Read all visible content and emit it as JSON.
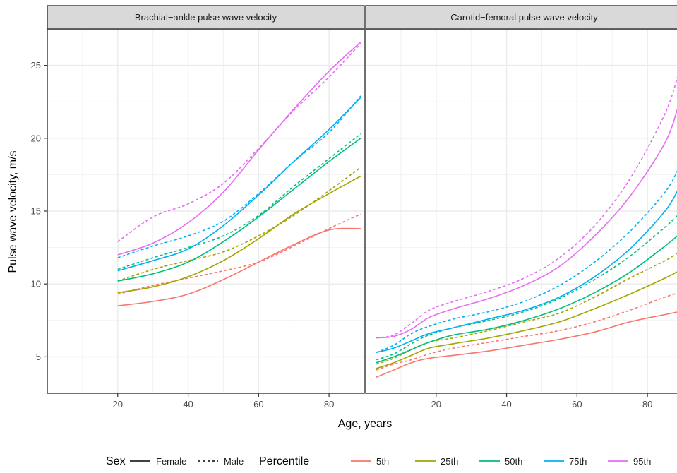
{
  "chart_data": {
    "type": "line",
    "xlabel": "Age, years",
    "ylabel": "Pulse wave velocity, m/s",
    "legend_position": "bottom",
    "grid": true,
    "colors": {
      "5th": "#F8766D",
      "25th": "#A3A500",
      "50th": "#00BF7D",
      "75th": "#00B0F6",
      "95th": "#E76BF3"
    },
    "legends": {
      "sex": {
        "title": "Sex",
        "items": [
          {
            "label": "Female",
            "linetype": "solid"
          },
          {
            "label": "Male",
            "linetype": "dashed"
          }
        ]
      },
      "percentile": {
        "title": "Percentile",
        "items": [
          "5th",
          "25th",
          "50th",
          "75th",
          "95th"
        ]
      }
    },
    "panels": [
      {
        "title": "Brachial−ankle pulse wave velocity",
        "xlim": [
          0,
          90
        ],
        "ylim": [
          2.5,
          27.5
        ],
        "x_ticks": [
          20,
          40,
          60,
          80
        ],
        "y_ticks": [
          5,
          10,
          15,
          20,
          25
        ],
        "series": [
          {
            "percentile": "5th",
            "sex": "Female",
            "x": [
              20,
              30,
              40,
              50,
              60,
              70,
              80,
              89
            ],
            "y": [
              8.5,
              8.8,
              9.3,
              10.3,
              11.5,
              12.7,
              13.7,
              13.8
            ]
          },
          {
            "percentile": "5th",
            "sex": "Male",
            "x": [
              20,
              30,
              40,
              50,
              60,
              70,
              80,
              89
            ],
            "y": [
              9.3,
              9.9,
              10.4,
              10.9,
              11.5,
              12.6,
              13.8,
              14.8
            ]
          },
          {
            "percentile": "25th",
            "sex": "Female",
            "x": [
              20,
              30,
              40,
              50,
              60,
              70,
              80,
              89
            ],
            "y": [
              9.4,
              9.8,
              10.5,
              11.6,
              13.1,
              14.8,
              16.2,
              17.4
            ]
          },
          {
            "percentile": "25th",
            "sex": "Male",
            "x": [
              20,
              30,
              40,
              50,
              60,
              70,
              80,
              89
            ],
            "y": [
              10.2,
              11.0,
              11.6,
              12.2,
              13.3,
              14.7,
              16.4,
              18.0
            ]
          },
          {
            "percentile": "50th",
            "sex": "Female",
            "x": [
              20,
              30,
              40,
              50,
              60,
              70,
              80,
              89
            ],
            "y": [
              10.2,
              10.7,
              11.5,
              12.9,
              14.6,
              16.5,
              18.4,
              20.0
            ]
          },
          {
            "percentile": "50th",
            "sex": "Male",
            "x": [
              20,
              30,
              40,
              50,
              60,
              70,
              80,
              89
            ],
            "y": [
              11.0,
              11.8,
              12.5,
              13.3,
              14.7,
              16.7,
              18.6,
              20.3
            ]
          },
          {
            "percentile": "75th",
            "sex": "Female",
            "x": [
              20,
              30,
              40,
              50,
              60,
              70,
              80,
              89
            ],
            "y": [
              10.9,
              11.6,
              12.4,
              14.0,
              16.1,
              18.4,
              20.6,
              22.8
            ]
          },
          {
            "percentile": "75th",
            "sex": "Male",
            "x": [
              20,
              30,
              40,
              50,
              60,
              70,
              80,
              89
            ],
            "y": [
              11.8,
              12.6,
              13.3,
              14.3,
              16.2,
              18.4,
              20.4,
              22.9
            ]
          },
          {
            "percentile": "95th",
            "sex": "Female",
            "x": [
              20,
              30,
              40,
              50,
              60,
              70,
              80,
              89
            ],
            "y": [
              12.0,
              12.8,
              14.2,
              16.3,
              19.2,
              22.0,
              24.6,
              26.6
            ]
          },
          {
            "percentile": "95th",
            "sex": "Male",
            "x": [
              20,
              30,
              40,
              50,
              60,
              70,
              80,
              89
            ],
            "y": [
              12.9,
              14.6,
              15.5,
              16.9,
              19.3,
              21.9,
              24.2,
              26.5
            ]
          }
        ]
      },
      {
        "title": "Carotid−femoral pulse wave velocity",
        "xlim": [
          0,
          90
        ],
        "ylim": [
          2.5,
          27.5
        ],
        "x_ticks": [
          20,
          40,
          60,
          80
        ],
        "y_ticks": [
          5,
          10,
          15,
          20,
          25
        ],
        "series": [
          {
            "percentile": "5th",
            "sex": "Female",
            "x": [
              3,
              8,
              13,
              18,
              25,
              35,
              45,
              55,
              65,
              75,
              85,
              89
            ],
            "y": [
              3.6,
              4.1,
              4.6,
              4.9,
              5.1,
              5.4,
              5.8,
              6.2,
              6.7,
              7.4,
              7.9,
              8.1
            ]
          },
          {
            "percentile": "5th",
            "sex": "Male",
            "x": [
              3,
              8,
              13,
              18,
              25,
              35,
              45,
              55,
              65,
              75,
              85,
              89
            ],
            "y": [
              4.1,
              4.5,
              4.8,
              5.2,
              5.6,
              6.0,
              6.4,
              6.8,
              7.4,
              8.2,
              9.1,
              9.4
            ]
          },
          {
            "percentile": "25th",
            "sex": "Female",
            "x": [
              3,
              8,
              13,
              18,
              25,
              35,
              45,
              55,
              65,
              75,
              85,
              89
            ],
            "y": [
              4.2,
              4.6,
              5.1,
              5.6,
              5.9,
              6.3,
              6.8,
              7.4,
              8.3,
              9.3,
              10.4,
              10.9
            ]
          },
          {
            "percentile": "25th",
            "sex": "Male",
            "x": [
              3,
              8,
              13,
              18,
              25,
              35,
              45,
              55,
              65,
              75,
              85,
              89
            ],
            "y": [
              4.5,
              4.9,
              5.5,
              6.0,
              6.3,
              6.8,
              7.4,
              8.0,
              9.1,
              10.4,
              11.6,
              12.2
            ]
          },
          {
            "percentile": "50th",
            "sex": "Female",
            "x": [
              3,
              8,
              13,
              18,
              25,
              35,
              45,
              55,
              65,
              75,
              85,
              89
            ],
            "y": [
              4.6,
              5.0,
              5.5,
              6.0,
              6.5,
              6.9,
              7.5,
              8.3,
              9.4,
              10.8,
              12.6,
              13.4
            ]
          },
          {
            "percentile": "50th",
            "sex": "Male",
            "x": [
              3,
              8,
              13,
              18,
              25,
              35,
              45,
              55,
              65,
              75,
              85,
              89
            ],
            "y": [
              4.8,
              5.2,
              5.9,
              6.5,
              7.0,
              7.5,
              8.1,
              9.0,
              10.3,
              11.9,
              13.9,
              14.8
            ]
          },
          {
            "percentile": "75th",
            "sex": "Female",
            "x": [
              3,
              8,
              13,
              18,
              25,
              35,
              45,
              55,
              65,
              75,
              85,
              89
            ],
            "y": [
              5.3,
              5.6,
              6.1,
              6.6,
              7.0,
              7.6,
              8.2,
              9.1,
              10.5,
              12.4,
              15.0,
              16.6
            ]
          },
          {
            "percentile": "75th",
            "sex": "Male",
            "x": [
              3,
              8,
              13,
              18,
              25,
              35,
              45,
              55,
              65,
              75,
              85,
              89
            ],
            "y": [
              5.3,
              5.8,
              6.6,
              7.1,
              7.6,
              8.1,
              8.8,
              9.9,
              11.5,
              13.6,
              16.3,
              18.0
            ]
          },
          {
            "percentile": "95th",
            "sex": "Female",
            "x": [
              3,
              8,
              13,
              18,
              25,
              35,
              45,
              55,
              65,
              75,
              85,
              89
            ],
            "y": [
              6.3,
              6.4,
              6.9,
              7.7,
              8.3,
              9.0,
              9.9,
              11.2,
              13.3,
              16.0,
              19.7,
              22.4
            ]
          },
          {
            "percentile": "95th",
            "sex": "Male",
            "x": [
              3,
              8,
              13,
              18,
              25,
              35,
              45,
              55,
              65,
              75,
              85,
              89
            ],
            "y": [
              6.3,
              6.5,
              7.3,
              8.2,
              8.8,
              9.5,
              10.4,
              11.8,
              14.0,
              17.2,
              21.7,
              24.6
            ]
          }
        ]
      }
    ]
  }
}
